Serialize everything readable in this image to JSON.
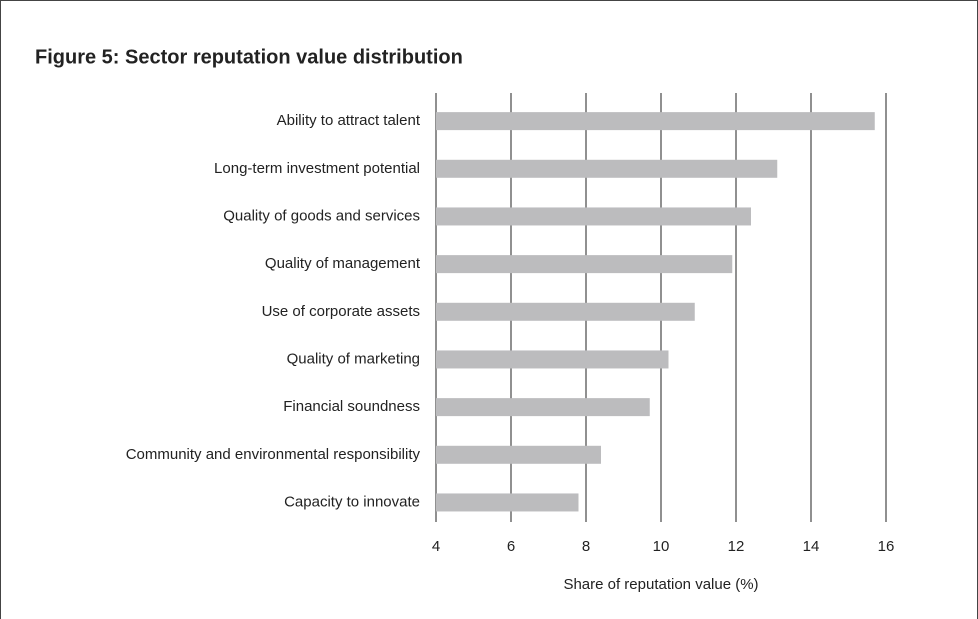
{
  "chart_data": {
    "type": "barh",
    "title": "Figure 5: Sector reputation value distribution",
    "categories": [
      "Ability to attract talent",
      "Long-term investment potential",
      "Quality of goods and services",
      "Quality of management",
      "Use of corporate assets",
      "Quality of marketing",
      "Financial soundness",
      "Community and environmental responsibility",
      "Capacity to innovate"
    ],
    "values": [
      15.7,
      13.1,
      12.4,
      11.9,
      10.9,
      10.2,
      9.7,
      8.4,
      7.8
    ],
    "color": "#bcbcbe",
    "xlabel": "Share of reputation value (%)",
    "xlim": [
      4,
      16
    ],
    "xticks": [
      4,
      6,
      8,
      10,
      12,
      14,
      16
    ],
    "grid": true
  }
}
